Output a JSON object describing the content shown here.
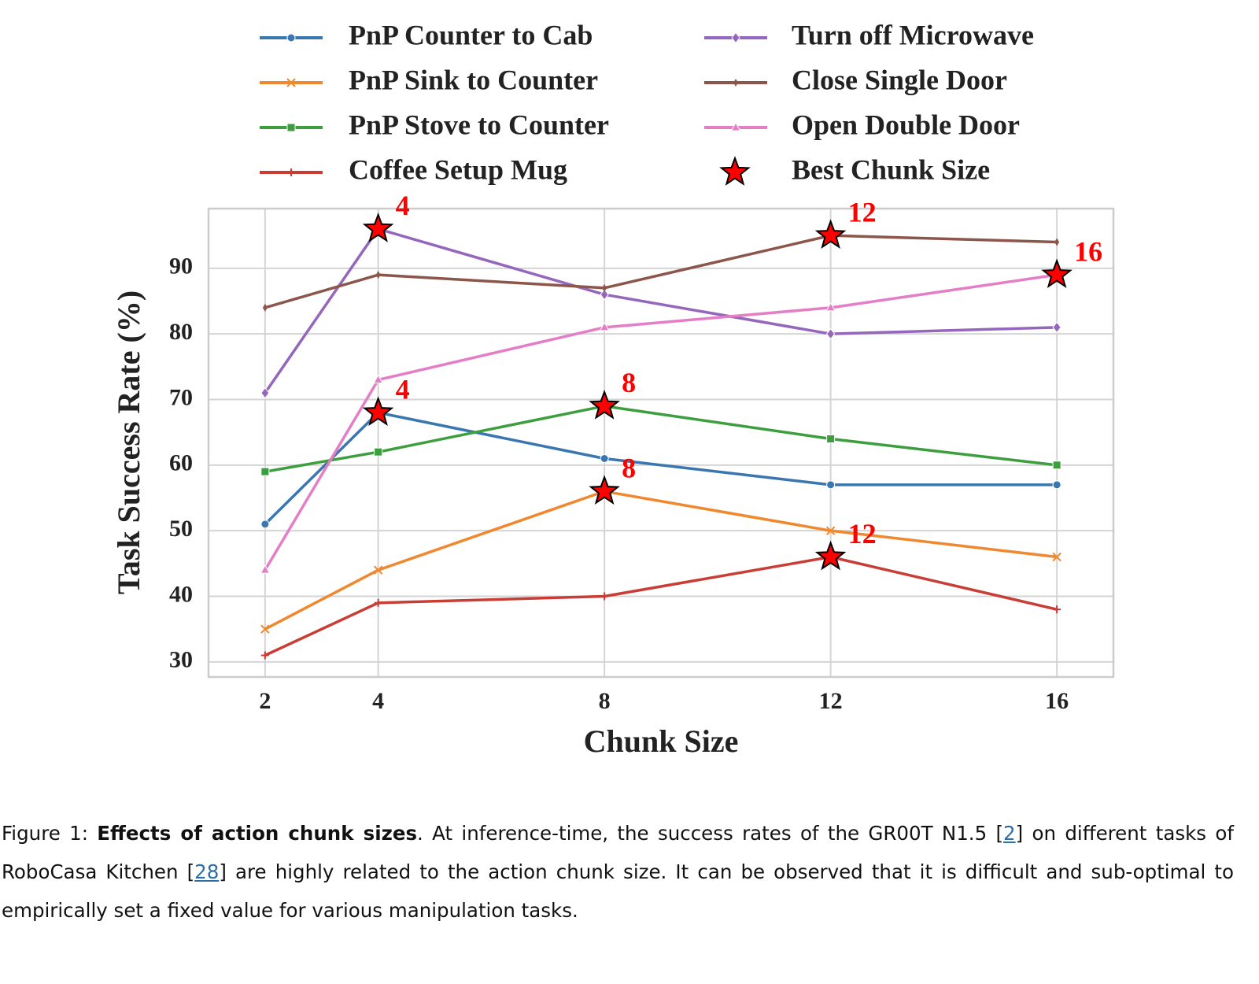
{
  "chart_data": {
    "type": "line",
    "xlabel": "Chunk Size",
    "ylabel": "Task Success Rate (%)",
    "x": [
      2,
      4,
      8,
      12,
      16
    ],
    "xlim": [
      1,
      17
    ],
    "xticks": [
      2,
      4,
      8,
      12,
      16
    ],
    "ylim": [
      27.7,
      99.1
    ],
    "yticks": [
      30,
      40,
      50,
      60,
      70,
      80,
      90
    ],
    "grid": true,
    "best_label": "Best Chunk Size",
    "best_color": "#ff0000",
    "series": [
      {
        "name": "PnP Counter to Cab",
        "color": "#3a76af",
        "marker": "circle",
        "values": [
          51,
          68,
          61,
          57,
          57
        ],
        "best": 4
      },
      {
        "name": "PnP Sink to Counter",
        "color": "#f0882f",
        "marker": "x",
        "values": [
          35,
          44,
          56,
          50,
          46
        ],
        "best": 8
      },
      {
        "name": "PnP Stove to Counter",
        "color": "#3c9e3c",
        "marker": "square",
        "values": [
          59,
          62,
          69,
          64,
          60
        ],
        "best": 8
      },
      {
        "name": "Coffee Setup Mug",
        "color": "#c93d36",
        "marker": "plus",
        "values": [
          31,
          39,
          40,
          46,
          38
        ],
        "best": 12
      },
      {
        "name": "Turn off Microwave",
        "color": "#9467bd",
        "marker": "diamond",
        "values": [
          71,
          96,
          86,
          80,
          81
        ],
        "best": 4
      },
      {
        "name": "Close Single Door",
        "color": "#8c564b",
        "marker": "thin-diamond",
        "values": [
          84,
          89,
          87,
          95,
          94
        ],
        "best": 12
      },
      {
        "name": "Open Double Door",
        "color": "#e47ec6",
        "marker": "triangle",
        "values": [
          44,
          73,
          81,
          84,
          89
        ],
        "best": 16
      }
    ]
  },
  "caption": {
    "label": "Figure 1: ",
    "title": "Effects of action chunk sizes",
    "text1": ". At inference-time, the success rates of the GR00T N1.5 [",
    "ref1": "2",
    "text2": "] on different tasks of RoboCasa Kitchen [",
    "ref2": "28",
    "text3": "] are highly related to the action chunk size. It can be observed that it is difficult and sub-optimal to empirically set a fixed value for various manipulation tasks."
  }
}
